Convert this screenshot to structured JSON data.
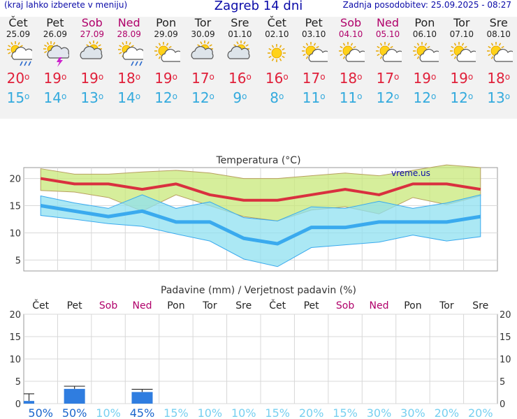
{
  "header": {
    "left_note": "(kraj lahko izberete v meniju)",
    "title": "Zagreb 14 dni",
    "updated": "Zadnja posodobitev: 25.09.2025 - 08:27"
  },
  "days": [
    {
      "name": "Čet",
      "date": "25.09",
      "weekend": false,
      "icon": "sun-cloud-rain-icon",
      "tmax": "20",
      "tmin": "15"
    },
    {
      "name": "Pet",
      "date": "26.09",
      "weekend": false,
      "icon": "cloud-thunder-icon",
      "tmax": "19",
      "tmin": "14"
    },
    {
      "name": "Sob",
      "date": "27.09",
      "weekend": true,
      "icon": "cloud-sun-icon",
      "tmax": "19",
      "tmin": "13"
    },
    {
      "name": "Ned",
      "date": "28.09",
      "weekend": true,
      "icon": "sun-cloud-rain-icon",
      "tmax": "18",
      "tmin": "14"
    },
    {
      "name": "Pon",
      "date": "29.09",
      "weekend": false,
      "icon": "sun-cloud-icon",
      "tmax": "19",
      "tmin": "12"
    },
    {
      "name": "Tor",
      "date": "30.09",
      "weekend": false,
      "icon": "cloud-sun-icon",
      "tmax": "17",
      "tmin": "12"
    },
    {
      "name": "Sre",
      "date": "01.10",
      "weekend": false,
      "icon": "cloud-sun-icon",
      "tmax": "16",
      "tmin": "9"
    },
    {
      "name": "Čet",
      "date": "02.10",
      "weekend": false,
      "icon": "sun-icon",
      "tmax": "16",
      "tmin": "8"
    },
    {
      "name": "Pet",
      "date": "03.10",
      "weekend": false,
      "icon": "sun-cloud-icon",
      "tmax": "17",
      "tmin": "11"
    },
    {
      "name": "Sob",
      "date": "04.10",
      "weekend": true,
      "icon": "sun-cloud-icon",
      "tmax": "18",
      "tmin": "11"
    },
    {
      "name": "Ned",
      "date": "05.10",
      "weekend": true,
      "icon": "sun-cloud-icon",
      "tmax": "17",
      "tmin": "12"
    },
    {
      "name": "Pon",
      "date": "06.10",
      "weekend": false,
      "icon": "sun-cloud-icon",
      "tmax": "19",
      "tmin": "12"
    },
    {
      "name": "Tor",
      "date": "07.10",
      "weekend": false,
      "icon": "sun-cloud-icon",
      "tmax": "19",
      "tmin": "12"
    },
    {
      "name": "Sre",
      "date": "08.10",
      "weekend": false,
      "icon": "sun-cloud-icon",
      "tmax": "18",
      "tmin": "13"
    }
  ],
  "degree_symbol": "o",
  "colors": {
    "max": "#d9303f",
    "min": "#3aaaee",
    "max_band": "#c8e87a",
    "min_band": "#8fe0f0",
    "weekend": "#b0006a",
    "bar": "#2f7de0",
    "prob": "#66ccee"
  },
  "chart_data": [
    {
      "type": "line",
      "title": "Temperatura (°C)",
      "watermark": "vreme.us",
      "categories": [
        "25.09",
        "26.09",
        "27.09",
        "28.09",
        "29.09",
        "30.09",
        "01.10",
        "02.10",
        "03.10",
        "04.10",
        "05.10",
        "06.10",
        "07.10",
        "08.10"
      ],
      "ylim": [
        3,
        22
      ],
      "yticks": [
        5,
        10,
        15,
        20
      ],
      "grid": true,
      "series": [
        {
          "name": "max",
          "values": [
            20,
            19,
            19,
            18,
            19,
            17,
            16,
            16,
            17,
            18,
            17,
            19,
            19,
            18
          ]
        },
        {
          "name": "max_band_upper",
          "values": [
            21.8,
            20.8,
            20.8,
            21.2,
            21.5,
            21.0,
            20.0,
            20.0,
            20.5,
            21.0,
            20.5,
            21.5,
            22.5,
            22.0
          ]
        },
        {
          "name": "max_band_lower",
          "values": [
            17.8,
            17.5,
            16.5,
            14.0,
            17.0,
            15.0,
            13.0,
            12.2,
            14.2,
            14.8,
            13.5,
            16.5,
            15.2,
            16.8
          ]
        },
        {
          "name": "min",
          "values": [
            15,
            14,
            13,
            14,
            12,
            12,
            9,
            8,
            11,
            11,
            12,
            12,
            12,
            13
          ]
        },
        {
          "name": "min_band_upper",
          "values": [
            16.8,
            15.5,
            14.5,
            17.0,
            14.5,
            15.7,
            12.8,
            12.2,
            14.8,
            14.5,
            15.8,
            14.5,
            15.5,
            17.0
          ]
        },
        {
          "name": "min_band_lower",
          "values": [
            13.2,
            12.5,
            11.7,
            11.2,
            9.8,
            8.5,
            5.2,
            3.8,
            7.3,
            7.8,
            8.3,
            9.6,
            8.5,
            9.3
          ]
        }
      ]
    },
    {
      "type": "bar",
      "title": "Padavine (mm) / Verjetnost padavin (%)",
      "categories": [
        "Čet",
        "Pet",
        "Sob",
        "Ned",
        "Pon",
        "Tor",
        "Sre",
        "Čet",
        "Pet",
        "Sob",
        "Ned",
        "Pon",
        "Tor",
        "Sre"
      ],
      "ylim": [
        0,
        20
      ],
      "yticks": [
        0,
        5,
        10,
        15,
        20
      ],
      "values": [
        0.6,
        3.3,
        0,
        2.6,
        0,
        0,
        0,
        0,
        0,
        0,
        0,
        0,
        0,
        0
      ],
      "error_high": [
        2.2,
        3.9,
        0,
        3.2,
        0,
        0,
        0,
        0,
        0,
        0,
        0,
        0,
        0,
        0
      ],
      "probabilities": [
        "50%",
        "50%",
        "10%",
        "45%",
        "15%",
        "10%",
        "10%",
        "15%",
        "20%",
        "15%",
        "30%",
        "30%",
        "20%",
        "20%"
      ]
    }
  ]
}
